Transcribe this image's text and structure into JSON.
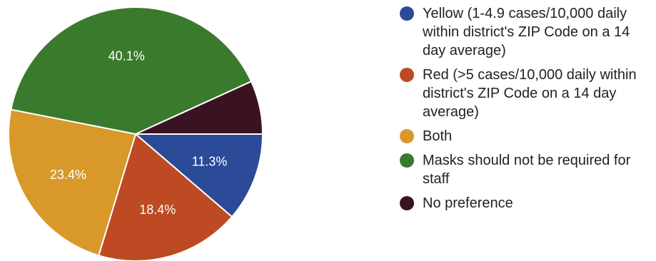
{
  "chart_data": {
    "type": "pie",
    "slices": [
      {
        "label": "Yellow (1-4.9 cases/10,000 daily within district's ZIP Code on a 14 day average)",
        "value": 11.3,
        "value_label": "11.3%",
        "color": "#2b4a97",
        "show_label": true
      },
      {
        "label": "Red (>5 cases/10,000 daily within district's ZIP Code on a 14 day average)",
        "value": 18.4,
        "value_label": "18.4%",
        "color": "#bd4a22",
        "show_label": true
      },
      {
        "label": "Both",
        "value": 23.4,
        "value_label": "23.4%",
        "color": "#d8982a",
        "show_label": true
      },
      {
        "label": "Masks should not be required for staff",
        "value": 40.1,
        "value_label": "40.1%",
        "color": "#3a7a2c",
        "show_label": true
      },
      {
        "label": "No preference",
        "value": 6.8,
        "value_label": "",
        "color": "#3a1322",
        "show_label": false
      }
    ],
    "legend_position": "right"
  }
}
